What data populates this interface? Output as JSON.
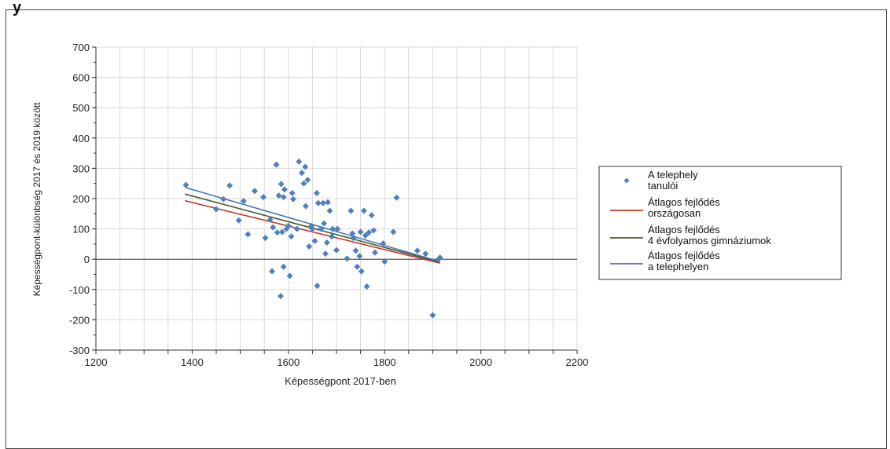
{
  "chart_data": {
    "type": "scatter",
    "xlabel": "Képességpont 2017-ben",
    "ylabel": "Képességpont-különbség 2017 és 2019 között",
    "xlim": [
      1200,
      2200
    ],
    "ylim": [
      -300,
      700
    ],
    "x_ticks": [
      1200,
      1400,
      1600,
      1800,
      2000,
      2200
    ],
    "y_ticks": [
      -300,
      -200,
      -100,
      0,
      100,
      200,
      300,
      400,
      500,
      600,
      700
    ],
    "grid": true,
    "legend_position": "right",
    "points": [
      [
        1387,
        245
      ],
      [
        1450,
        165
      ],
      [
        1465,
        198
      ],
      [
        1478,
        243
      ],
      [
        1497,
        128
      ],
      [
        1507,
        192
      ],
      [
        1516,
        82
      ],
      [
        1530,
        225
      ],
      [
        1548,
        205
      ],
      [
        1552,
        70
      ],
      [
        1562,
        130
      ],
      [
        1566,
        -40
      ],
      [
        1568,
        105
      ],
      [
        1575,
        312
      ],
      [
        1577,
        88
      ],
      [
        1580,
        210
      ],
      [
        1584,
        -122
      ],
      [
        1585,
        248
      ],
      [
        1587,
        90
      ],
      [
        1590,
        205
      ],
      [
        1590,
        -25
      ],
      [
        1592,
        230
      ],
      [
        1596,
        100
      ],
      [
        1600,
        110
      ],
      [
        1603,
        -55
      ],
      [
        1606,
        75
      ],
      [
        1608,
        218
      ],
      [
        1610,
        198
      ],
      [
        1618,
        100
      ],
      [
        1622,
        322
      ],
      [
        1628,
        285
      ],
      [
        1632,
        250
      ],
      [
        1635,
        305
      ],
      [
        1636,
        175
      ],
      [
        1640,
        262
      ],
      [
        1643,
        42
      ],
      [
        1648,
        110
      ],
      [
        1650,
        100
      ],
      [
        1655,
        60
      ],
      [
        1659,
        218
      ],
      [
        1660,
        -88
      ],
      [
        1662,
        185
      ],
      [
        1668,
        100
      ],
      [
        1672,
        185
      ],
      [
        1674,
        118
      ],
      [
        1677,
        18
      ],
      [
        1680,
        55
      ],
      [
        1682,
        188
      ],
      [
        1686,
        160
      ],
      [
        1690,
        75
      ],
      [
        1692,
        100
      ],
      [
        1700,
        30
      ],
      [
        1702,
        100
      ],
      [
        1722,
        2
      ],
      [
        1730,
        160
      ],
      [
        1733,
        85
      ],
      [
        1735,
        70
      ],
      [
        1740,
        28
      ],
      [
        1743,
        -25
      ],
      [
        1748,
        10
      ],
      [
        1750,
        90
      ],
      [
        1752,
        -40
      ],
      [
        1757,
        160
      ],
      [
        1760,
        78
      ],
      [
        1763,
        -90
      ],
      [
        1767,
        88
      ],
      [
        1773,
        145
      ],
      [
        1777,
        95
      ],
      [
        1780,
        22
      ],
      [
        1797,
        52
      ],
      [
        1800,
        -8
      ],
      [
        1818,
        90
      ],
      [
        1825,
        203
      ],
      [
        1868,
        28
      ],
      [
        1885,
        18
      ],
      [
        1900,
        -185
      ],
      [
        1912,
        0
      ],
      [
        1915,
        5
      ]
    ],
    "series": [
      {
        "name": "A telephely tanulói",
        "legend_lines": [
          "A telephely",
          "tanulói"
        ],
        "kind": "points",
        "color": "#4f81bd"
      },
      {
        "name": "Átlagos fejlődés országosan",
        "legend_lines": [
          "Átlagos fejlődés",
          "országosan"
        ],
        "kind": "line",
        "color": "#c0392b",
        "x": [
          1385,
          1915
        ],
        "y": [
          193,
          -13
        ]
      },
      {
        "name": "Átlagos fejlődés 4 évfolyamos gimnáziumok",
        "legend_lines": [
          "Átlagos fejlődés",
          "4 évfolyamos gimnáziumok"
        ],
        "kind": "line",
        "color": "#4f5a2e",
        "x": [
          1385,
          1915
        ],
        "y": [
          215,
          -10
        ]
      },
      {
        "name": "Átlagos fejlődés a telephelyen",
        "legend_lines": [
          "Átlagos fejlődés",
          "a telephelyen"
        ],
        "kind": "line",
        "color": "#4a77b4",
        "x": [
          1385,
          1915
        ],
        "y": [
          237,
          -8
        ]
      }
    ]
  }
}
